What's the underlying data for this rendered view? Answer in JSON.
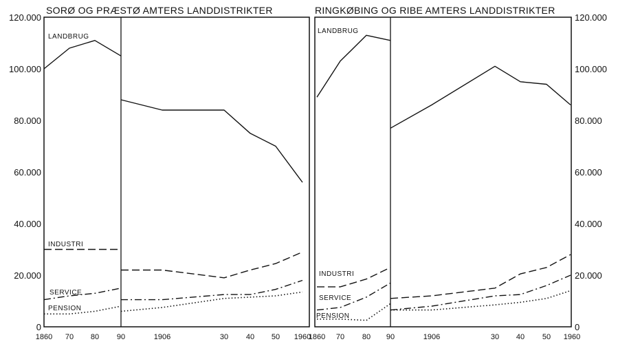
{
  "chart_data": [
    {
      "type": "line",
      "title": "SORØ OG PRÆSTØ AMTERS LANDDISTRIKTER",
      "ylim": [
        0,
        120000
      ],
      "y_tick_labels": [
        "0",
        "20.000",
        "40.000",
        "60.000",
        "80.000",
        "100.000",
        "120.000"
      ],
      "x_tick_labels": [
        "1860",
        "70",
        "80",
        "90",
        "1906",
        "30",
        "40",
        "50",
        "1960"
      ],
      "grid": false,
      "series": [
        {
          "name": "LANDBRUG",
          "style": "solid",
          "x": [
            1860,
            1870,
            1880,
            1890
          ],
          "values": [
            100000,
            108000,
            111000,
            105000
          ]
        },
        {
          "name": "LANDBRUG",
          "style": "solid",
          "x": [
            1890,
            1906,
            1930,
            1940,
            1950,
            1960
          ],
          "values": [
            88000,
            84000,
            84000,
            75000,
            70000,
            56000
          ]
        },
        {
          "name": "INDUSTRI",
          "style": "dashed",
          "x": [
            1860,
            1870,
            1880,
            1890
          ],
          "values": [
            30000,
            30000,
            30000,
            30000
          ]
        },
        {
          "name": "INDUSTRI",
          "style": "dashed",
          "x": [
            1890,
            1906,
            1930,
            1940,
            1950,
            1960
          ],
          "values": [
            22000,
            22000,
            19000,
            22000,
            24500,
            29000
          ]
        },
        {
          "name": "SERVICE",
          "style": "dash-dot",
          "x": [
            1860,
            1870,
            1880,
            1890
          ],
          "values": [
            10500,
            12000,
            13000,
            15000
          ]
        },
        {
          "name": "SERVICE",
          "style": "dash-dot",
          "x": [
            1890,
            1906,
            1930,
            1940,
            1950,
            1960
          ],
          "values": [
            10500,
            10500,
            12500,
            12500,
            14500,
            18000
          ]
        },
        {
          "name": "PENSION",
          "style": "dotted",
          "x": [
            1860,
            1870,
            1880,
            1890
          ],
          "values": [
            5000,
            5000,
            6000,
            8000
          ]
        },
        {
          "name": "PENSION",
          "style": "dotted",
          "x": [
            1890,
            1906,
            1930,
            1940,
            1950,
            1960
          ],
          "values": [
            6000,
            7500,
            11000,
            11500,
            12000,
            13500
          ]
        }
      ]
    },
    {
      "type": "line",
      "title": "RINGKØBING OG RIBE AMTERS LANDDISTRIKTER",
      "ylim": [
        0,
        120000
      ],
      "y_tick_labels": [
        "0",
        "20.000",
        "40.000",
        "60.000",
        "80.000",
        "100.000",
        "120.000"
      ],
      "x_tick_labels": [
        "1860",
        "70",
        "80",
        "90",
        "1906",
        "30",
        "40",
        "50",
        "1960"
      ],
      "grid": false,
      "series": [
        {
          "name": "LANDBRUG",
          "style": "solid",
          "x": [
            1860,
            1870,
            1880,
            1890
          ],
          "values": [
            89000,
            103000,
            113000,
            111000
          ]
        },
        {
          "name": "LANDBRUG",
          "style": "solid",
          "x": [
            1890,
            1906,
            1930,
            1940,
            1950,
            1960
          ],
          "values": [
            77000,
            86000,
            101000,
            95000,
            94000,
            86000
          ]
        },
        {
          "name": "INDUSTRI",
          "style": "dashed",
          "x": [
            1860,
            1870,
            1880,
            1890
          ],
          "values": [
            15500,
            15500,
            18500,
            23000
          ]
        },
        {
          "name": "INDUSTRI",
          "style": "dashed",
          "x": [
            1890,
            1906,
            1930,
            1940,
            1950,
            1960
          ],
          "values": [
            11000,
            12000,
            15000,
            20500,
            23000,
            28000
          ]
        },
        {
          "name": "SERVICE",
          "style": "dash-dot",
          "x": [
            1860,
            1870,
            1880,
            1890
          ],
          "values": [
            6500,
            7500,
            11500,
            17000
          ]
        },
        {
          "name": "SERVICE",
          "style": "dash-dot",
          "x": [
            1890,
            1906,
            1930,
            1940,
            1950,
            1960
          ],
          "values": [
            6500,
            8000,
            12000,
            12500,
            16000,
            20000
          ]
        },
        {
          "name": "PENSION",
          "style": "dotted",
          "x": [
            1860,
            1870,
            1880,
            1890
          ],
          "values": [
            3000,
            3000,
            2500,
            9000
          ]
        },
        {
          "name": "PENSION",
          "style": "dotted",
          "x": [
            1890,
            1906,
            1930,
            1940,
            1950,
            1960
          ],
          "values": [
            6500,
            6500,
            8500,
            9500,
            11000,
            14000
          ]
        }
      ]
    }
  ]
}
